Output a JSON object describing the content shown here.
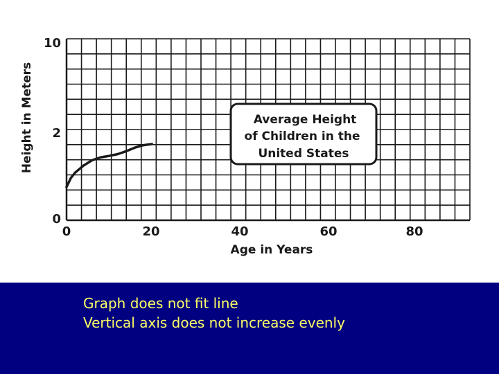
{
  "chart_data": {
    "type": "line",
    "title_lines": [
      "Average Height",
      "of Children in the",
      "United States"
    ],
    "xlabel": "Age in Years",
    "ylabel": "Height in Meters",
    "x_tick_labels": [
      "0",
      "20",
      "40",
      "60",
      "80"
    ],
    "y_tick_labels": [
      "0",
      "2",
      "10"
    ],
    "xlim": [
      0,
      95
    ],
    "grid": true,
    "series": [
      {
        "x": [
          0,
          1,
          2,
          4,
          6,
          8,
          10,
          12,
          14,
          16,
          18,
          20
        ],
        "y": [
          0.35,
          0.6,
          0.75,
          0.95,
          1.1,
          1.18,
          1.22,
          1.27,
          1.35,
          1.45,
          1.52,
          1.55
        ]
      }
    ]
  },
  "caption": {
    "line1": "Graph does not fit line",
    "line2": "Vertical axis does not increase evenly"
  },
  "colors": {
    "ink": "#1a1a1a",
    "band": "#000080",
    "caption_text": "#ffff66"
  }
}
